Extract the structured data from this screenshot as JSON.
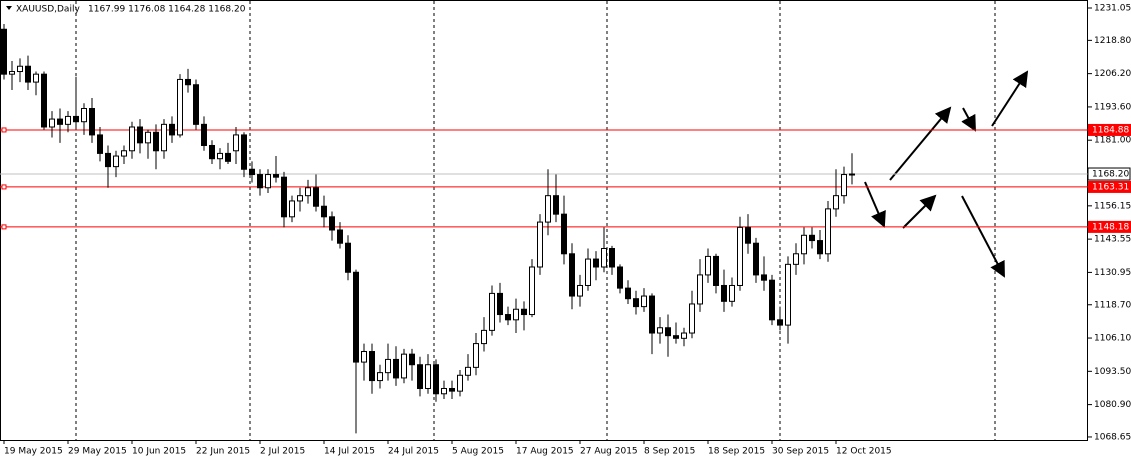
{
  "chart_data": {
    "type": "candlestick",
    "title": "XAUUSD,Daily",
    "subtitle": "1167.99 1176.08 1164.28 1168.20",
    "categories": [
      "19 May 2015",
      null,
      null,
      null,
      null,
      null,
      null,
      null,
      "29 May 2015",
      null,
      null,
      null,
      null,
      null,
      null,
      null,
      "10 Jun 2015",
      null,
      null,
      null,
      null,
      null,
      null,
      null,
      "22 Jun 2015",
      null,
      null,
      null,
      null,
      null,
      null,
      null,
      "2 Jul 2015",
      null,
      null,
      null,
      null,
      null,
      null,
      null,
      "14 Jul 2015",
      null,
      null,
      null,
      null,
      null,
      null,
      null,
      "24 Jul 2015",
      null,
      null,
      null,
      null,
      null,
      null,
      null,
      "5 Aug 2015",
      null,
      null,
      null,
      null,
      null,
      null,
      null,
      "17 Aug 2015",
      null,
      null,
      null,
      null,
      null,
      null,
      null,
      "27 Aug 2015",
      null,
      null,
      null,
      null,
      null,
      null,
      null,
      "8 Sep 2015",
      null,
      null,
      null,
      null,
      null,
      null,
      null,
      "18 Sep 2015",
      null,
      null,
      null,
      null,
      null,
      null,
      null,
      "30 Sep 2015",
      null,
      null,
      null,
      null,
      null,
      null,
      null,
      "12 Oct 2015",
      null,
      null
    ],
    "open": [
      1223,
      1206,
      1207,
      1209,
      1203,
      1206,
      1186,
      1189,
      1187,
      1190,
      1188,
      1193,
      1183,
      1176,
      1171,
      1175,
      1177,
      1186,
      1180,
      1184,
      1177,
      1187,
      1183,
      1204,
      1202,
      1187,
      1179,
      1174,
      1176,
      1177,
      1183,
      1170,
      1168,
      1163,
      1168,
      1167,
      1152,
      1158,
      1160,
      1163,
      1156,
      1152,
      1147,
      1142,
      1131,
      1097,
      1101,
      1090,
      1093,
      1098,
      1091,
      1100,
      1096,
      1087,
      1096,
      1085,
      1087,
      1086,
      1092,
      1095,
      1104,
      1109,
      1123,
      1115,
      1113,
      1117,
      1115,
      1133,
      1150,
      1160,
      1153,
      1138,
      1122,
      1126,
      1136,
      1133,
      1140,
      1133,
      1125,
      1121,
      1118,
      1122,
      1108,
      1110,
      1107,
      1106,
      1108,
      1119,
      1130,
      1137,
      1126,
      1120,
      1126,
      1148,
      1142,
      1130,
      1128,
      1113,
      1111,
      1134,
      1138,
      1145,
      1143,
      1138,
      1155,
      1160,
      1167.99
    ],
    "high": [
      1225,
      1211,
      1212,
      1213,
      1207,
      1207,
      1192,
      1193,
      1192,
      1205,
      1195,
      1197,
      1186,
      1179,
      1177,
      1179,
      1188,
      1189,
      1185,
      1187,
      1189,
      1190,
      1206,
      1208,
      1204,
      1190,
      1181,
      1178,
      1180,
      1186,
      1184,
      1173,
      1170,
      1170,
      1175,
      1169,
      1160,
      1163,
      1166,
      1168,
      1160,
      1154,
      1150,
      1145,
      1132,
      1104,
      1104,
      1096,
      1104,
      1103,
      1102,
      1102,
      1099,
      1100,
      1098,
      1090,
      1090,
      1094,
      1100,
      1108,
      1114,
      1126,
      1127,
      1118,
      1121,
      1120,
      1136,
      1153,
      1170,
      1168,
      1160,
      1142,
      1130,
      1140,
      1139,
      1148,
      1141,
      1134,
      1128,
      1124,
      1125,
      1123,
      1114,
      1115,
      1112,
      1110,
      1124,
      1136,
      1140,
      1138,
      1132,
      1129,
      1152,
      1153,
      1144,
      1137,
      1130,
      1118,
      1137,
      1142,
      1148,
      1148,
      1147,
      1158,
      1170,
      1171,
      1176.08
    ],
    "low": [
      1204,
      1200,
      1203,
      1200,
      1198,
      1185,
      1182,
      1180,
      1184,
      1186,
      1183,
      1180,
      1173,
      1163,
      1167,
      1172,
      1174,
      1176,
      1174,
      1170,
      1174,
      1180,
      1182,
      1199,
      1185,
      1177,
      1172,
      1170,
      1172,
      1172,
      1167,
      1165,
      1160,
      1161,
      1165,
      1148,
      1150,
      1154,
      1157,
      1154,
      1148,
      1143,
      1140,
      1128,
      1070,
      1090,
      1085,
      1087,
      1090,
      1088,
      1089,
      1090,
      1084,
      1085,
      1082,
      1083,
      1083,
      1084,
      1090,
      1092,
      1101,
      1107,
      1112,
      1111,
      1108,
      1109,
      1114,
      1130,
      1145,
      1150,
      1134,
      1117,
      1118,
      1124,
      1128,
      1131,
      1130,
      1123,
      1119,
      1115,
      1116,
      1100,
      1104,
      1099,
      1104,
      1103,
      1106,
      1116,
      1127,
      1123,
      1116,
      1118,
      1124,
      1138,
      1127,
      1124,
      1111,
      1109,
      1104,
      1130,
      1134,
      1140,
      1136,
      1135,
      1152,
      1157,
      1164.28
    ],
    "close": [
      1206,
      1207,
      1209,
      1203,
      1206,
      1186,
      1189,
      1187,
      1190,
      1188,
      1193,
      1183,
      1176,
      1171,
      1175,
      1177,
      1186,
      1180,
      1184,
      1177,
      1187,
      1183,
      1204,
      1202,
      1187,
      1179,
      1174,
      1176,
      1173,
      1183,
      1170,
      1168,
      1163,
      1168,
      1167,
      1152,
      1158,
      1160,
      1163,
      1156,
      1152,
      1147,
      1142,
      1131,
      1097,
      1101,
      1090,
      1093,
      1098,
      1091,
      1100,
      1096,
      1087,
      1096,
      1085,
      1087,
      1086,
      1092,
      1095,
      1104,
      1109,
      1123,
      1115,
      1113,
      1117,
      1115,
      1133,
      1150,
      1160,
      1153,
      1138,
      1122,
      1126,
      1136,
      1133,
      1140,
      1133,
      1125,
      1121,
      1118,
      1122,
      1108,
      1110,
      1107,
      1106,
      1108,
      1119,
      1130,
      1137,
      1126,
      1120,
      1126,
      1148,
      1142,
      1130,
      1128,
      1113,
      1111,
      1134,
      1138,
      1145,
      1143,
      1138,
      1155,
      1160,
      1168,
      1168.2
    ],
    "ylim": [
      1067.5,
      1233.7
    ],
    "yticks": [
      1231.05,
      {
        "value": 1218.8,
        "label": "1218.80"
      },
      {
        "value": 1206.2,
        "label": "1206.20"
      },
      {
        "value": 1193.6,
        "label": "1193.60"
      },
      {
        "value": 1181.0,
        "label": "1181.00"
      },
      1156.15,
      1143.55,
      1130.95,
      {
        "value": 1118.7,
        "label": "1118.70"
      },
      {
        "value": 1106.1,
        "label": "1106.10"
      },
      {
        "value": 1093.5,
        "label": "1093.50"
      },
      {
        "value": 1080.9,
        "label": "1080.90"
      },
      1068.65
    ],
    "levels": [
      1184.88,
      1163.31,
      1148.18
    ],
    "level_color": "#ff0000",
    "current_price": {
      "value": 1168.2,
      "label": "1168.20"
    },
    "bull_color": "#ffffff",
    "bear_color": "#000000"
  }
}
